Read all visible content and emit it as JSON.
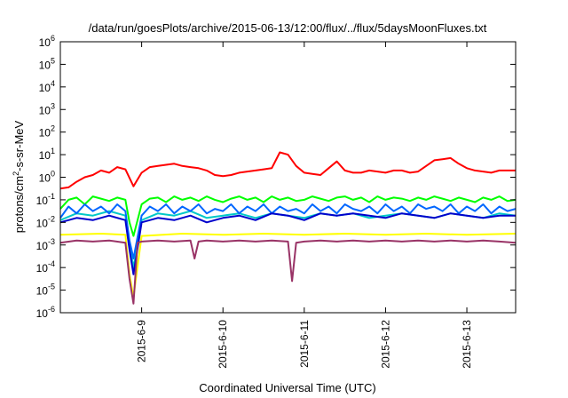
{
  "chart_data": {
    "type": "line",
    "title": "/data/run/goesPlots/archive/2015-06-13/12:00/flux/../flux/5daysMoonFluxes.txt",
    "xlabel": "Coordinated Universal Time (UTC)",
    "ylabel": {
      "main": "protons/cm",
      "sup": "2",
      "rest": "-s-sr-MeV"
    },
    "log_y": true,
    "grid": false,
    "legend": "none",
    "ylim": [
      -6,
      6
    ],
    "xlim": [
      0,
      5.6
    ],
    "x_ticks": [
      {
        "x": 1,
        "label": "2015-6-9"
      },
      {
        "x": 2,
        "label": "2015-6-10"
      },
      {
        "x": 3,
        "label": "2015-6-11"
      },
      {
        "x": 4,
        "label": "2015-6-12"
      },
      {
        "x": 5,
        "label": "2015-6-13"
      }
    ],
    "y_ticks": [
      {
        "v": -6,
        "base": "10",
        "exp": "-6"
      },
      {
        "v": -5,
        "base": "10",
        "exp": "-5"
      },
      {
        "v": -4,
        "base": "10",
        "exp": "-4"
      },
      {
        "v": -3,
        "base": "10",
        "exp": "-3"
      },
      {
        "v": -2,
        "base": "10",
        "exp": "-2"
      },
      {
        "v": -1,
        "base": "10",
        "exp": "-1"
      },
      {
        "v": 0,
        "base": "10",
        "exp": "0"
      },
      {
        "v": 1,
        "base": "10",
        "exp": "1"
      },
      {
        "v": 2,
        "base": "10",
        "exp": "2"
      },
      {
        "v": 3,
        "base": "10",
        "exp": "3"
      },
      {
        "v": 4,
        "base": "10",
        "exp": "4"
      },
      {
        "v": 5,
        "base": "10",
        "exp": "5"
      },
      {
        "v": 6,
        "base": "10",
        "exp": "6"
      }
    ],
    "series": [
      {
        "color": "#ff0000",
        "x": [
          0,
          0.1,
          0.2,
          0.3,
          0.4,
          0.5,
          0.6,
          0.7,
          0.8,
          0.9,
          1.0,
          1.1,
          1.2,
          1.3,
          1.4,
          1.5,
          1.6,
          1.7,
          1.8,
          1.9,
          2.0,
          2.1,
          2.2,
          2.3,
          2.4,
          2.5,
          2.6,
          2.7,
          2.8,
          2.9,
          3.0,
          3.1,
          3.2,
          3.3,
          3.4,
          3.5,
          3.6,
          3.7,
          3.8,
          3.9,
          4.0,
          4.1,
          4.2,
          4.3,
          4.4,
          4.5,
          4.6,
          4.7,
          4.8,
          4.9,
          5.0,
          5.1,
          5.2,
          5.3,
          5.4,
          5.5,
          5.6
        ],
        "y": [
          -0.5,
          -0.45,
          -0.2,
          0.0,
          0.1,
          0.3,
          0.2,
          0.45,
          0.35,
          -0.4,
          0.2,
          0.45,
          0.5,
          0.55,
          0.6,
          0.5,
          0.45,
          0.4,
          0.3,
          0.1,
          0.05,
          0.1,
          0.2,
          0.25,
          0.3,
          0.35,
          0.4,
          1.1,
          1.0,
          0.5,
          0.2,
          0.15,
          0.1,
          0.4,
          0.7,
          0.3,
          0.2,
          0.2,
          0.3,
          0.25,
          0.2,
          0.3,
          0.3,
          0.2,
          0.25,
          0.5,
          0.75,
          0.8,
          0.85,
          0.6,
          0.4,
          0.3,
          0.25,
          0.2,
          0.3,
          0.3,
          0.3
        ]
      },
      {
        "color": "#00ff00",
        "x": [
          0,
          0.1,
          0.2,
          0.3,
          0.4,
          0.5,
          0.6,
          0.7,
          0.8,
          0.85,
          0.9,
          1.0,
          1.1,
          1.2,
          1.3,
          1.4,
          1.5,
          1.6,
          1.7,
          1.8,
          1.9,
          2.0,
          2.1,
          2.2,
          2.3,
          2.4,
          2.5,
          2.6,
          2.7,
          2.8,
          2.9,
          3.0,
          3.1,
          3.2,
          3.3,
          3.4,
          3.5,
          3.6,
          3.7,
          3.8,
          3.9,
          4.0,
          4.1,
          4.2,
          4.3,
          4.4,
          4.5,
          4.6,
          4.7,
          4.8,
          4.9,
          5.0,
          5.1,
          5.2,
          5.3,
          5.4,
          5.5,
          5.6
        ],
        "y": [
          -1.4,
          -1.0,
          -0.9,
          -1.2,
          -0.85,
          -0.95,
          -1.05,
          -0.9,
          -1.0,
          -2.0,
          -2.6,
          -1.2,
          -0.95,
          -0.9,
          -1.1,
          -0.85,
          -1.0,
          -0.9,
          -1.05,
          -0.85,
          -1.0,
          -1.1,
          -0.95,
          -0.85,
          -1.0,
          -0.9,
          -1.1,
          -0.85,
          -1.0,
          -0.9,
          -1.05,
          -1.0,
          -0.85,
          -0.95,
          -1.05,
          -0.9,
          -0.85,
          -1.0,
          -0.9,
          -1.1,
          -0.85,
          -1.0,
          -0.9,
          -0.95,
          -1.05,
          -0.9,
          -1.0,
          -0.85,
          -0.95,
          -1.05,
          -0.9,
          -1.0,
          -1.1,
          -0.9,
          -1.0,
          -0.85,
          -1.05,
          -1.0
        ]
      },
      {
        "color": "#00c8c8",
        "x": [
          0,
          0.2,
          0.4,
          0.6,
          0.8,
          0.85,
          0.9,
          1.0,
          1.2,
          1.4,
          1.6,
          1.8,
          2.0,
          2.2,
          2.4,
          2.6,
          2.8,
          3.0,
          3.2,
          3.4,
          3.6,
          3.8,
          4.0,
          4.2,
          4.4,
          4.6,
          4.8,
          5.0,
          5.2,
          5.4,
          5.6
        ],
        "y": [
          -1.9,
          -1.6,
          -1.7,
          -1.5,
          -1.7,
          -3.0,
          -4.0,
          -1.9,
          -1.6,
          -1.7,
          -1.5,
          -1.8,
          -1.7,
          -1.6,
          -1.8,
          -1.6,
          -1.7,
          -1.8,
          -1.6,
          -1.7,
          -1.6,
          -1.8,
          -1.7,
          -1.6,
          -1.7,
          -1.8,
          -1.6,
          -1.7,
          -1.8,
          -1.6,
          -1.7
        ]
      },
      {
        "color": "#0066ff",
        "x": [
          0,
          0.1,
          0.2,
          0.3,
          0.4,
          0.5,
          0.6,
          0.7,
          0.8,
          0.85,
          0.9,
          1.0,
          1.1,
          1.2,
          1.3,
          1.4,
          1.5,
          1.6,
          1.7,
          1.8,
          1.9,
          2.0,
          2.1,
          2.2,
          2.3,
          2.4,
          2.5,
          2.6,
          2.7,
          2.8,
          2.9,
          3.0,
          3.1,
          3.2,
          3.3,
          3.4,
          3.5,
          3.6,
          3.7,
          3.8,
          3.9,
          4.0,
          4.1,
          4.2,
          4.3,
          4.4,
          4.5,
          4.6,
          4.7,
          4.8,
          4.9,
          5.0,
          5.1,
          5.2,
          5.3,
          5.4,
          5.5,
          5.6
        ],
        "y": [
          -1.8,
          -1.3,
          -1.6,
          -1.2,
          -1.5,
          -1.3,
          -1.6,
          -1.2,
          -1.5,
          -2.8,
          -3.6,
          -1.7,
          -1.3,
          -1.5,
          -1.2,
          -1.6,
          -1.3,
          -1.5,
          -1.2,
          -1.6,
          -1.4,
          -1.5,
          -1.2,
          -1.6,
          -1.3,
          -1.5,
          -1.2,
          -1.6,
          -1.3,
          -1.5,
          -1.4,
          -1.6,
          -1.2,
          -1.5,
          -1.3,
          -1.6,
          -1.2,
          -1.4,
          -1.5,
          -1.3,
          -1.6,
          -1.2,
          -1.5,
          -1.3,
          -1.6,
          -1.2,
          -1.4,
          -1.3,
          -1.5,
          -1.2,
          -1.6,
          -1.3,
          -1.5,
          -1.2,
          -1.6,
          -1.3,
          -1.5,
          -1.4
        ]
      },
      {
        "color": "#0000cc",
        "x": [
          0,
          0.2,
          0.4,
          0.6,
          0.8,
          0.85,
          0.9,
          1.0,
          1.2,
          1.4,
          1.6,
          1.8,
          2.0,
          2.2,
          2.4,
          2.6,
          2.8,
          3.0,
          3.2,
          3.4,
          3.6,
          3.8,
          4.0,
          4.2,
          4.4,
          4.6,
          4.8,
          5.0,
          5.2,
          5.4,
          5.6
        ],
        "y": [
          -2.0,
          -1.8,
          -1.9,
          -1.7,
          -1.9,
          -3.2,
          -4.3,
          -2.0,
          -1.8,
          -1.9,
          -1.7,
          -2.0,
          -1.8,
          -1.7,
          -1.9,
          -1.6,
          -1.7,
          -1.9,
          -1.6,
          -1.7,
          -1.6,
          -1.7,
          -1.8,
          -1.6,
          -1.7,
          -1.8,
          -1.6,
          -1.7,
          -1.8,
          -1.7,
          -1.7
        ]
      },
      {
        "color": "#ffff00",
        "x": [
          0,
          0.5,
          0.8,
          0.85,
          0.9,
          1.0,
          1.5,
          2.0,
          2.5,
          3.0,
          3.5,
          4.0,
          4.5,
          5.0,
          5.6
        ],
        "y": [
          -2.55,
          -2.5,
          -2.55,
          -4.3,
          -5.3,
          -2.6,
          -2.5,
          -2.55,
          -2.5,
          -2.55,
          -2.5,
          -2.55,
          -2.5,
          -2.55,
          -2.5
        ]
      },
      {
        "color": "#993366",
        "x": [
          0,
          0.2,
          0.4,
          0.6,
          0.8,
          0.85,
          0.9,
          0.95,
          1.0,
          1.2,
          1.4,
          1.6,
          1.65,
          1.7,
          1.8,
          2.0,
          2.2,
          2.4,
          2.6,
          2.8,
          2.85,
          2.9,
          3.0,
          3.2,
          3.4,
          3.6,
          3.8,
          4.0,
          4.2,
          4.4,
          4.6,
          4.8,
          5.0,
          5.2,
          5.4,
          5.6
        ],
        "y": [
          -2.9,
          -2.8,
          -2.85,
          -2.8,
          -2.9,
          -4.5,
          -5.6,
          -2.9,
          -2.85,
          -2.8,
          -2.85,
          -2.8,
          -3.6,
          -2.85,
          -2.8,
          -2.85,
          -2.8,
          -2.85,
          -2.8,
          -2.85,
          -4.6,
          -2.9,
          -2.85,
          -2.8,
          -2.85,
          -2.8,
          -2.85,
          -2.8,
          -2.85,
          -2.8,
          -2.85,
          -2.8,
          -2.85,
          -2.8,
          -2.85,
          -2.9
        ]
      }
    ]
  }
}
